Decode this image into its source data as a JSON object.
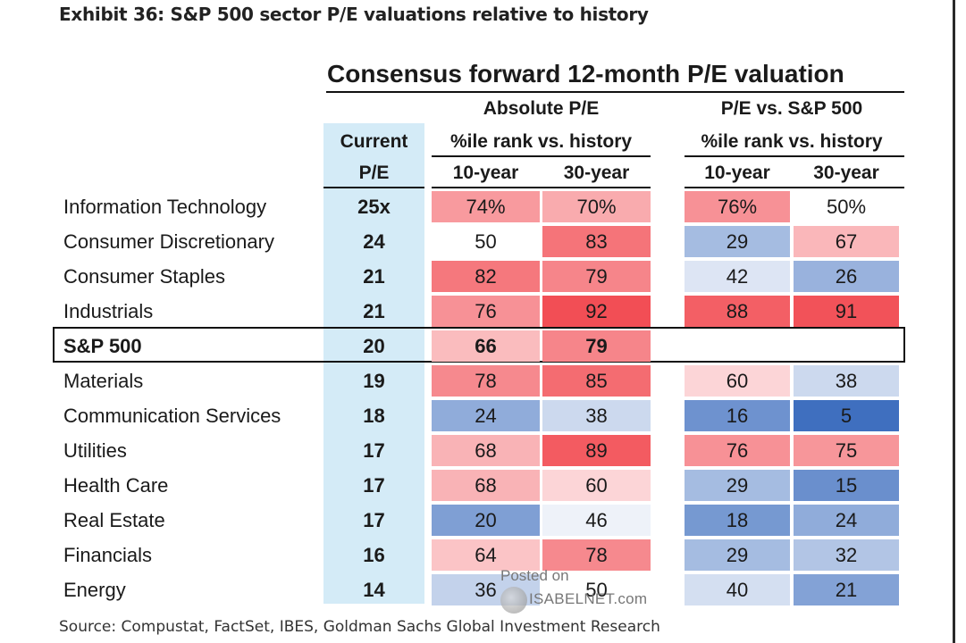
{
  "exhibit_title": "Exhibit 36: S&P 500 sector P/E valuations relative to history",
  "source": "Source: Compustat, FactSet, IBES, Goldman Sachs Global Investment Research",
  "watermark": {
    "line1": "Posted on",
    "line2": "ISABELNET.com"
  },
  "headers": {
    "consensus": "Consensus forward 12-month P/E valuation",
    "absolute": "Absolute P/E",
    "relative": "P/E vs. S&P 500",
    "current_line1": "Current",
    "current_line2": "P/E",
    "rank_abs": "%ile rank vs. history",
    "rank_rel": "%ile rank vs. history",
    "abs_10y": "10-year",
    "abs_30y": "30-year",
    "rel_10y": "10-year",
    "rel_30y": "30-year"
  },
  "chart_data": {
    "type": "table",
    "title": "Consensus forward 12-month P/E valuation",
    "columns": [
      "Current P/E",
      "Absolute P/E 10-year",
      "Absolute P/E 30-year",
      "P/E vs. S&P 500 10-year",
      "P/E vs. S&P 500 30-year"
    ],
    "rows": [
      {
        "sector": "Information Technology",
        "pe": "25x",
        "abs10": "74%",
        "abs30": "70%",
        "rel10": "76%",
        "rel30": "50%",
        "v": [
          74,
          70,
          76,
          50
        ]
      },
      {
        "sector": "Consumer Discretionary",
        "pe": "24",
        "abs10": "50",
        "abs30": "83",
        "rel10": "29",
        "rel30": "67",
        "v": [
          50,
          83,
          29,
          67
        ]
      },
      {
        "sector": "Consumer Staples",
        "pe": "21",
        "abs10": "82",
        "abs30": "79",
        "rel10": "42",
        "rel30": "26",
        "v": [
          82,
          79,
          42,
          26
        ]
      },
      {
        "sector": "Industrials",
        "pe": "21",
        "abs10": "76",
        "abs30": "92",
        "rel10": "88",
        "rel30": "91",
        "v": [
          76,
          92,
          88,
          91
        ]
      },
      {
        "sector": "S&P 500",
        "pe": "20",
        "abs10": "66",
        "abs30": "79",
        "rel10": "",
        "rel30": "",
        "v": [
          66,
          79,
          null,
          null
        ],
        "highlight": true
      },
      {
        "sector": "Materials",
        "pe": "19",
        "abs10": "78",
        "abs30": "85",
        "rel10": "60",
        "rel30": "38",
        "v": [
          78,
          85,
          60,
          38
        ]
      },
      {
        "sector": "Communication Services",
        "pe": "18",
        "abs10": "24",
        "abs30": "38",
        "rel10": "16",
        "rel30": "5",
        "v": [
          24,
          38,
          16,
          5
        ]
      },
      {
        "sector": "Utilities",
        "pe": "17",
        "abs10": "68",
        "abs30": "89",
        "rel10": "76",
        "rel30": "75",
        "v": [
          68,
          89,
          76,
          75
        ]
      },
      {
        "sector": "Health Care",
        "pe": "17",
        "abs10": "68",
        "abs30": "60",
        "rel10": "29",
        "rel30": "15",
        "v": [
          68,
          60,
          29,
          15
        ]
      },
      {
        "sector": "Real Estate",
        "pe": "17",
        "abs10": "20",
        "abs30": "46",
        "rel10": "18",
        "rel30": "24",
        "v": [
          20,
          46,
          18,
          24
        ]
      },
      {
        "sector": "Financials",
        "pe": "16",
        "abs10": "64",
        "abs30": "78",
        "rel10": "29",
        "rel30": "32",
        "v": [
          64,
          78,
          29,
          32
        ]
      },
      {
        "sector": "Energy",
        "pe": "14",
        "abs10": "36",
        "abs30": "50",
        "rel10": "40",
        "rel30": "21",
        "v": [
          36,
          50,
          40,
          21
        ]
      }
    ],
    "color_scale": {
      "low": "#3f6fbf",
      "mid": "#ffffff",
      "high": "#f24e55"
    }
  }
}
